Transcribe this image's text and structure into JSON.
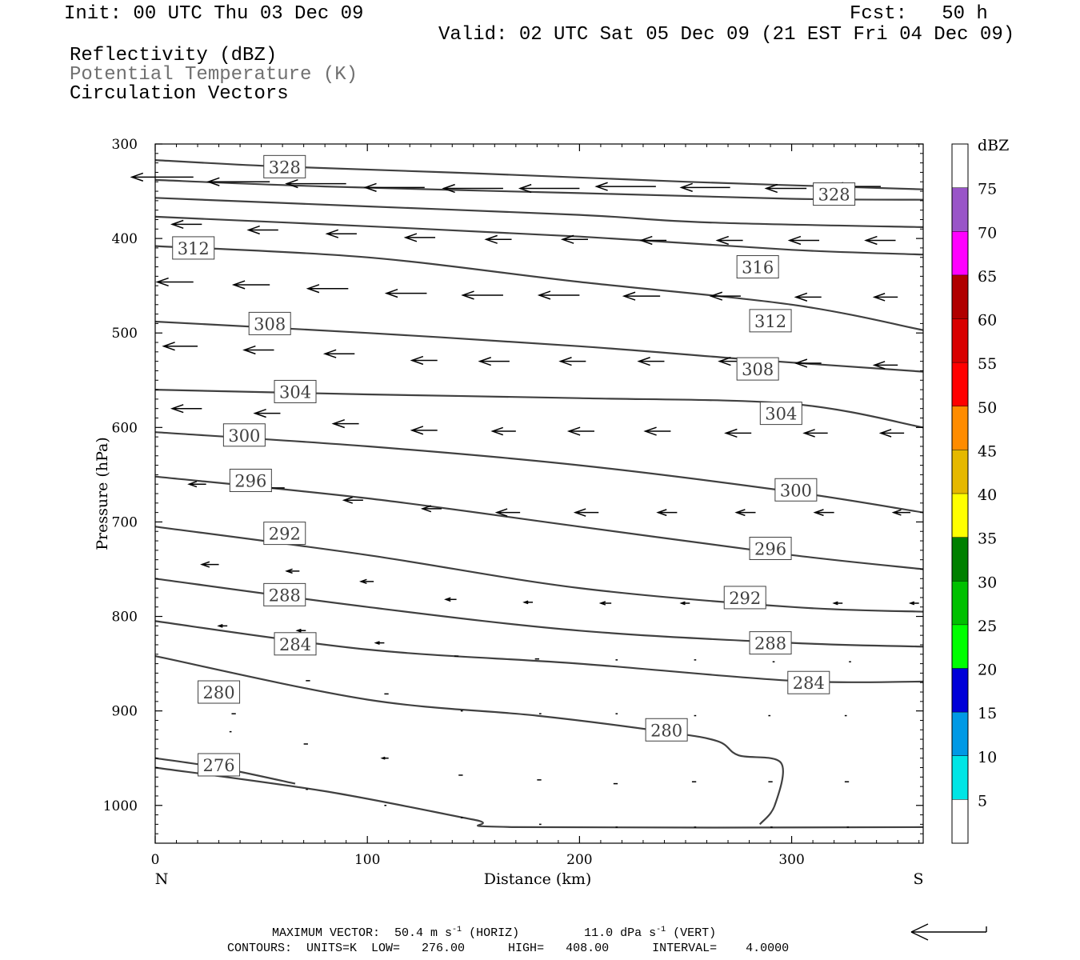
{
  "header": {
    "init": "Init: 00 UTC Thu 03 Dec 09",
    "fcst": "Fcst:   50 h",
    "valid": "Valid: 02 UTC Sat 05 Dec 09 (21 EST Fri 04 Dec 09)",
    "fields": [
      {
        "label": "Reflectivity (dBZ)",
        "color": "#000000"
      },
      {
        "label": "Potential Temperature (K)",
        "color": "#707070"
      },
      {
        "label": "Circulation Vectors",
        "color": "#000000"
      }
    ]
  },
  "chart_data": {
    "type": "cross-section",
    "xlabel": "Distance (km)",
    "ylabel": "Pressure (hPa)",
    "xlim": [
      0,
      362
    ],
    "ylim": [
      300,
      1040
    ],
    "y_inverted": true,
    "x_ticks": [
      0,
      100,
      200,
      300
    ],
    "y_ticks": [
      300,
      400,
      500,
      600,
      700,
      800,
      900,
      1000
    ],
    "left_end_label": "N",
    "right_end_label": "S",
    "contour_color": "#404040",
    "contours": [
      {
        "level": 328,
        "label": "328",
        "points": [
          [
            0,
            317
          ],
          [
            60,
            324
          ],
          [
            150,
            331
          ],
          [
            250,
            340
          ],
          [
            362,
            348
          ]
        ],
        "labels_at": [
          [
            61,
            324
          ],
          [
            320,
            353
          ]
        ]
      },
      {
        "level": 324,
        "label": "",
        "points": [
          [
            0,
            338
          ],
          [
            80,
            345
          ],
          [
            200,
            352
          ],
          [
            300,
            358
          ],
          [
            362,
            359
          ]
        ],
        "labels_at": []
      },
      {
        "level": 320,
        "label": "",
        "points": [
          [
            0,
            357
          ],
          [
            100,
            366
          ],
          [
            200,
            375
          ],
          [
            260,
            383
          ],
          [
            362,
            388
          ]
        ],
        "labels_at": []
      },
      {
        "level": 316,
        "label": "",
        "points": [
          [
            0,
            377
          ],
          [
            100,
            387
          ],
          [
            200,
            398
          ],
          [
            300,
            412
          ],
          [
            362,
            417
          ]
        ],
        "labels_at": [
          [
            284,
            430
          ]
        ]
      },
      {
        "level": 312,
        "label": "312",
        "points": [
          [
            0,
            408
          ],
          [
            100,
            420
          ],
          [
            200,
            446
          ],
          [
            300,
            470
          ],
          [
            362,
            497
          ]
        ],
        "labels_at": [
          [
            18,
            410
          ],
          [
            290,
            487
          ]
        ]
      },
      {
        "level": 308,
        "label": "308",
        "points": [
          [
            0,
            488
          ],
          [
            100,
            500
          ],
          [
            200,
            514
          ],
          [
            280,
            528
          ],
          [
            362,
            541
          ]
        ],
        "labels_at": [
          [
            54,
            490
          ],
          [
            284,
            538
          ]
        ]
      },
      {
        "level": 304,
        "label": "304",
        "points": [
          [
            0,
            560
          ],
          [
            100,
            565
          ],
          [
            200,
            569
          ],
          [
            300,
            575
          ],
          [
            362,
            600
          ]
        ],
        "labels_at": [
          [
            66,
            562
          ],
          [
            295,
            585
          ]
        ]
      },
      {
        "level": 300,
        "label": "300",
        "points": [
          [
            0,
            605
          ],
          [
            100,
            620
          ],
          [
            200,
            640
          ],
          [
            300,
            668
          ],
          [
            362,
            690
          ]
        ],
        "labels_at": [
          [
            42,
            608
          ],
          [
            302,
            666
          ]
        ]
      },
      {
        "level": 296,
        "label": "296",
        "points": [
          [
            0,
            652
          ],
          [
            100,
            675
          ],
          [
            200,
            705
          ],
          [
            300,
            735
          ],
          [
            362,
            750
          ]
        ],
        "labels_at": [
          [
            45,
            656
          ],
          [
            290,
            728
          ]
        ]
      },
      {
        "level": 292,
        "label": "292",
        "points": [
          [
            0,
            705
          ],
          [
            100,
            735
          ],
          [
            200,
            770
          ],
          [
            300,
            790
          ],
          [
            362,
            795
          ]
        ],
        "labels_at": [
          [
            61,
            712
          ],
          [
            278,
            780
          ]
        ]
      },
      {
        "level": 288,
        "label": "288",
        "points": [
          [
            0,
            760
          ],
          [
            100,
            790
          ],
          [
            200,
            815
          ],
          [
            300,
            828
          ],
          [
            362,
            832
          ]
        ],
        "labels_at": [
          [
            61,
            777
          ],
          [
            290,
            828
          ]
        ]
      },
      {
        "level": 284,
        "label": "284",
        "points": [
          [
            0,
            805
          ],
          [
            100,
            835
          ],
          [
            200,
            850
          ],
          [
            300,
            868
          ],
          [
            362,
            869
          ]
        ],
        "labels_at": [
          [
            66,
            829
          ],
          [
            308,
            870
          ]
        ]
      },
      {
        "level": 280,
        "label": "280",
        "points": [
          [
            0,
            842
          ],
          [
            100,
            888
          ],
          [
            180,
            905
          ],
          [
            240,
            922
          ],
          [
            265,
            932
          ],
          [
            275,
            947
          ],
          [
            295,
            955
          ],
          [
            292,
            1000
          ],
          [
            285,
            1020
          ]
        ],
        "labels_at": [
          [
            30,
            880
          ],
          [
            241,
            920
          ]
        ]
      },
      {
        "level": 276,
        "label": "276",
        "points": [
          [
            0,
            950
          ],
          [
            30,
            960
          ],
          [
            66,
            977
          ]
        ],
        "labels_at": [
          [
            30,
            957
          ]
        ]
      },
      {
        "level": 272,
        "label": "",
        "points": [
          [
            0,
            960
          ],
          [
            80,
            985
          ],
          [
            150,
            1015
          ],
          [
            170,
            1023
          ],
          [
            362,
            1023
          ]
        ],
        "labels_at": []
      }
    ],
    "vectors": [
      [
        18,
        335,
        -29,
        0
      ],
      [
        54,
        340,
        -29,
        0
      ],
      [
        90,
        342,
        -28,
        0
      ],
      [
        127,
        346,
        -28,
        0
      ],
      [
        164,
        347,
        -28,
        0
      ],
      [
        200,
        347,
        -28,
        0
      ],
      [
        236,
        345,
        -28,
        0
      ],
      [
        271,
        346,
        -23,
        0
      ],
      [
        307,
        347,
        -19,
        0
      ],
      [
        342,
        345,
        -23,
        0
      ],
      [
        22,
        385,
        -14,
        0
      ],
      [
        58,
        391,
        -14,
        0
      ],
      [
        95,
        395,
        -14,
        0
      ],
      [
        132,
        399,
        -14,
        0
      ],
      [
        168,
        401,
        -12,
        0
      ],
      [
        204,
        401,
        -12,
        0
      ],
      [
        241,
        402,
        -12,
        0
      ],
      [
        277,
        402,
        -12,
        0
      ],
      [
        313,
        402,
        -14,
        0
      ],
      [
        349,
        402,
        -14,
        0
      ],
      [
        18,
        446,
        -17,
        0
      ],
      [
        54,
        449,
        -17,
        0
      ],
      [
        91,
        453,
        -19,
        0
      ],
      [
        128,
        458,
        -19,
        0
      ],
      [
        164,
        460,
        -19,
        0
      ],
      [
        200,
        460,
        -19,
        0
      ],
      [
        238,
        461,
        -17,
        0
      ],
      [
        276,
        461,
        -14,
        0
      ],
      [
        314,
        462,
        -12,
        0
      ],
      [
        350,
        462,
        -11,
        0
      ],
      [
        20,
        514,
        -16,
        0
      ],
      [
        56,
        518,
        -14,
        0
      ],
      [
        94,
        522,
        -14,
        0
      ],
      [
        133,
        529,
        -12,
        0
      ],
      [
        167,
        530,
        -14,
        0
      ],
      [
        203,
        530,
        -12,
        0
      ],
      [
        240,
        530,
        -12,
        0
      ],
      [
        278,
        530,
        -12,
        0
      ],
      [
        314,
        532,
        -12,
        0
      ],
      [
        350,
        534,
        -11,
        0
      ],
      [
        22,
        580,
        -14,
        0
      ],
      [
        59,
        585,
        -12,
        0
      ],
      [
        96,
        596,
        -12,
        0
      ],
      [
        133,
        603,
        -12,
        0
      ],
      [
        170,
        604,
        -11,
        0
      ],
      [
        207,
        604,
        -12,
        0
      ],
      [
        243,
        604,
        -12,
        0
      ],
      [
        281,
        606,
        -12,
        0
      ],
      [
        317,
        606,
        -11,
        0
      ],
      [
        353,
        606,
        -11,
        0
      ],
      [
        24,
        660,
        -8,
        0
      ],
      [
        61,
        664,
        -11,
        0
      ],
      [
        98,
        677,
        -9,
        0
      ],
      [
        135,
        686,
        -9,
        0
      ],
      [
        172,
        690,
        -11,
        0
      ],
      [
        209,
        690,
        -11,
        0
      ],
      [
        246,
        690,
        -9,
        0
      ],
      [
        283,
        690,
        -9,
        0
      ],
      [
        320,
        690,
        -9,
        0
      ],
      [
        356,
        690,
        -8,
        0
      ],
      [
        30,
        745,
        -8,
        0
      ],
      [
        68,
        752,
        -6,
        0
      ],
      [
        103,
        763,
        -6,
        0
      ],
      [
        142,
        782,
        -5,
        0
      ],
      [
        178,
        785,
        -4,
        0
      ],
      [
        215,
        786,
        -5,
        0
      ],
      [
        252,
        786,
        -4,
        0
      ],
      [
        288,
        786,
        -4,
        0
      ],
      [
        324,
        786,
        -4,
        0
      ],
      [
        360,
        786,
        -4,
        0
      ],
      [
        34,
        810,
        -4,
        0
      ],
      [
        71,
        815,
        -4,
        0
      ],
      [
        108,
        828,
        -4,
        0
      ],
      [
        143,
        842,
        -2,
        0
      ],
      [
        181,
        845,
        -2,
        0
      ],
      [
        218,
        846,
        -1,
        0
      ],
      [
        255,
        846,
        -1,
        0
      ],
      [
        292,
        848,
        -1,
        0
      ],
      [
        328,
        848,
        -1,
        0
      ],
      [
        38,
        903,
        -2,
        0
      ],
      [
        73,
        868,
        -2,
        0
      ],
      [
        110,
        882,
        -2,
        0
      ],
      [
        145,
        900,
        -1,
        0
      ],
      [
        182,
        903,
        -1,
        0
      ],
      [
        218,
        903,
        -1,
        0
      ],
      [
        255,
        905,
        -1,
        0
      ],
      [
        290,
        905,
        -1,
        0
      ],
      [
        326,
        905,
        -1,
        0
      ],
      [
        36,
        922,
        -1,
        0
      ],
      [
        72,
        935,
        -2,
        0
      ],
      [
        110,
        950,
        -3,
        0
      ],
      [
        145,
        968,
        -2,
        0
      ],
      [
        182,
        973,
        -2,
        0
      ],
      [
        218,
        977,
        -2,
        0
      ],
      [
        255,
        975,
        -2,
        0
      ],
      [
        291,
        975,
        -2,
        0
      ],
      [
        327,
        975,
        -2,
        0
      ],
      [
        72,
        983,
        -1,
        0
      ],
      [
        109,
        1000,
        -1,
        0
      ],
      [
        145,
        1013,
        -1,
        0
      ],
      [
        182,
        1020,
        -1,
        0
      ],
      [
        218,
        1023,
        -1,
        0
      ],
      [
        255,
        1023,
        -1,
        0
      ],
      [
        291,
        1023,
        -1,
        0
      ],
      [
        327,
        1023,
        -1,
        0
      ]
    ],
    "colorbar": {
      "label": "dBZ",
      "levels": [
        "5",
        "10",
        "15",
        "20",
        "25",
        "30",
        "35",
        "40",
        "45",
        "50",
        "55",
        "60",
        "65",
        "70",
        "75"
      ],
      "colors": [
        "#ffffff",
        "#00e5e5",
        "#0099e5",
        "#0000d8",
        "#00ff00",
        "#00c000",
        "#008000",
        "#ffff00",
        "#e5b800",
        "#ff8c00",
        "#ff0000",
        "#d80000",
        "#b00000",
        "#ff00ff",
        "#9955c8",
        "#ffffff"
      ]
    }
  },
  "footer": {
    "line1_prefix": "MAXIMUM VECTOR:  50.4 m s",
    "line1_exp1": "-1",
    "line1_mid": " (HORIZ)         11.0 dPa s",
    "line1_exp2": "-1",
    "line1_suffix": " (VERT)",
    "line2": "CONTOURS:  UNITS=K  LOW=   276.00      HIGH=   408.00      INTERVAL=    4.0000"
  }
}
